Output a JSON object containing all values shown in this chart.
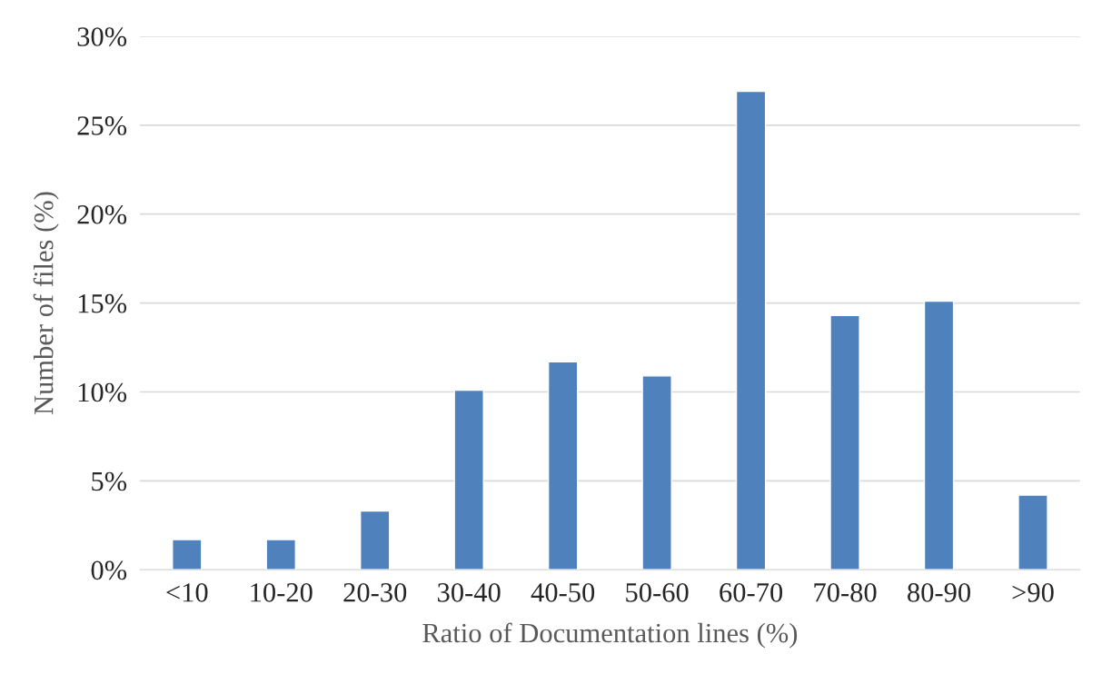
{
  "chart_data": {
    "type": "bar",
    "xlabel": "Ratio of Documentation lines (%)",
    "ylabel": "Number of files (%)",
    "categories": [
      "<10",
      "10-20",
      "20-30",
      "30-40",
      "40-50",
      "50-60",
      "60-70",
      "70-80",
      "80-90",
      ">90"
    ],
    "values": [
      1.7,
      1.7,
      3.3,
      10.1,
      11.7,
      10.9,
      26.9,
      14.3,
      15.1,
      4.2
    ],
    "color": "#4f81bd",
    "ylim": [
      0,
      30
    ],
    "yticks": [
      {
        "value": 0,
        "label": "0%"
      },
      {
        "value": 5,
        "label": "5%"
      },
      {
        "value": 10,
        "label": "10%"
      },
      {
        "value": 15,
        "label": "15%"
      },
      {
        "value": 20,
        "label": "20%"
      },
      {
        "value": 25,
        "label": "25%"
      },
      {
        "value": 30,
        "label": "30%"
      }
    ],
    "grid": "y",
    "legend": false
  }
}
